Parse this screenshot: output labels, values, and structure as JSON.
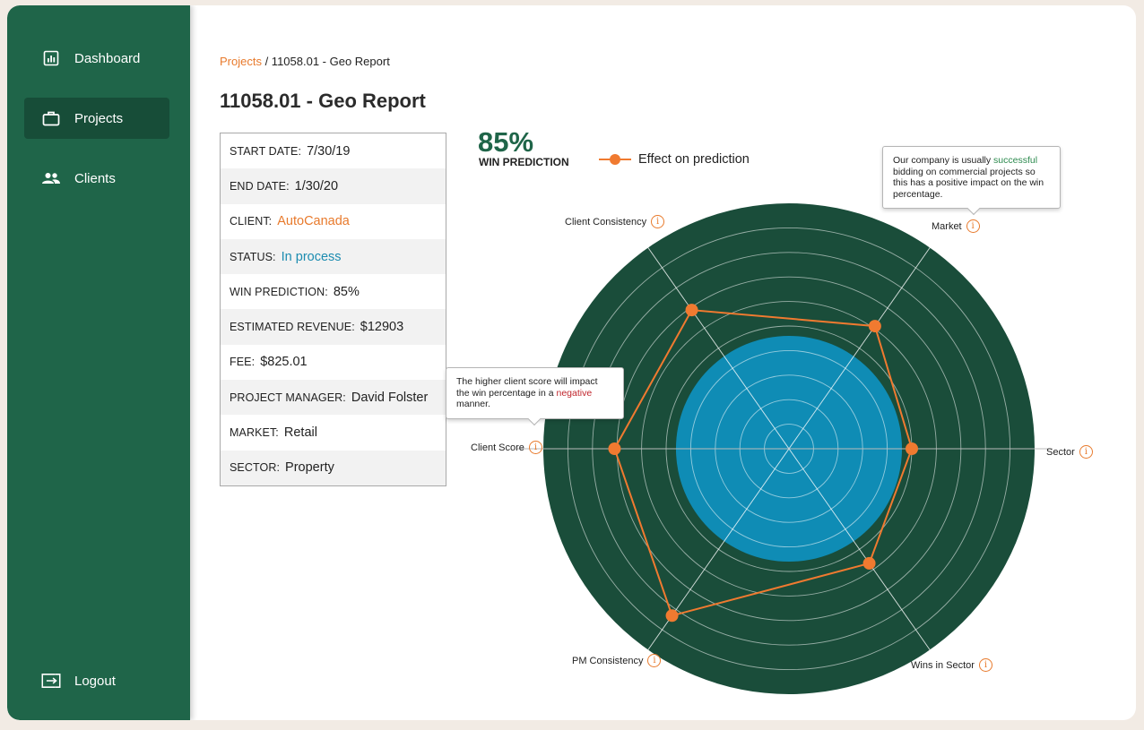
{
  "sidebar": {
    "items": [
      {
        "label": "Dashboard",
        "icon": "bar-chart-icon"
      },
      {
        "label": "Projects",
        "icon": "briefcase-icon",
        "active": true
      },
      {
        "label": "Clients",
        "icon": "people-icon"
      }
    ],
    "logout_label": "Logout"
  },
  "breadcrumb": {
    "link": "Projects",
    "rest": " / 11058.01  - Geo Report"
  },
  "page_title": "11058.01 - Geo Report",
  "details": [
    {
      "key": "START DATE:",
      "value": "7/30/19",
      "color": ""
    },
    {
      "key": "END DATE:",
      "value": "1/30/20",
      "color": ""
    },
    {
      "key": "CLIENT:",
      "value": "AutoCanada",
      "color": "orange"
    },
    {
      "key": "STATUS:",
      "value": "In process",
      "color": "blue"
    },
    {
      "key": "WIN PREDICTION:",
      "value": "85%",
      "color": ""
    },
    {
      "key": "ESTIMATED REVENUE:",
      "value": "$12903",
      "color": ""
    },
    {
      "key": "FEE:",
      "value": "$825.01",
      "color": ""
    },
    {
      "key": "PROJECT MANAGER:",
      "value": "David Folster",
      "color": ""
    },
    {
      "key": "MARKET:",
      "value": "Retail",
      "color": ""
    },
    {
      "key": "SECTOR:",
      "value": "Property",
      "color": ""
    }
  ],
  "prediction": {
    "value": "85%",
    "label": "WIN PREDICTION"
  },
  "legend": {
    "label": "Effect on prediction",
    "color": "#f07a30"
  },
  "tooltips": {
    "market": {
      "before": "Our company is usually ",
      "highlight": "successful",
      "after": " bidding on commercial projects so this has a positive impact on the win percentage."
    },
    "client_score": {
      "before": "The higher client score will impact the win percentage in a ",
      "highlight": "negative",
      "after": " manner."
    }
  },
  "colors": {
    "sidebar": "#1f6549",
    "radar_outer": "#1a4d3a",
    "radar_inner": "#0f8cb5",
    "line": "#f07a30",
    "accent": "#e87a2c"
  },
  "chart_data": {
    "type": "radar",
    "axes": [
      "Market",
      "Sector",
      "Wins in Sector",
      "PM Consistency",
      "Client Score",
      "Client Consistency"
    ],
    "values": [
      0.61,
      0.5,
      0.57,
      0.83,
      0.71,
      0.69
    ],
    "inner_band": 0.5,
    "rings": 10,
    "series": [
      {
        "name": "Effect on prediction",
        "values": [
          0.61,
          0.5,
          0.57,
          0.83,
          0.71,
          0.69
        ]
      }
    ]
  }
}
